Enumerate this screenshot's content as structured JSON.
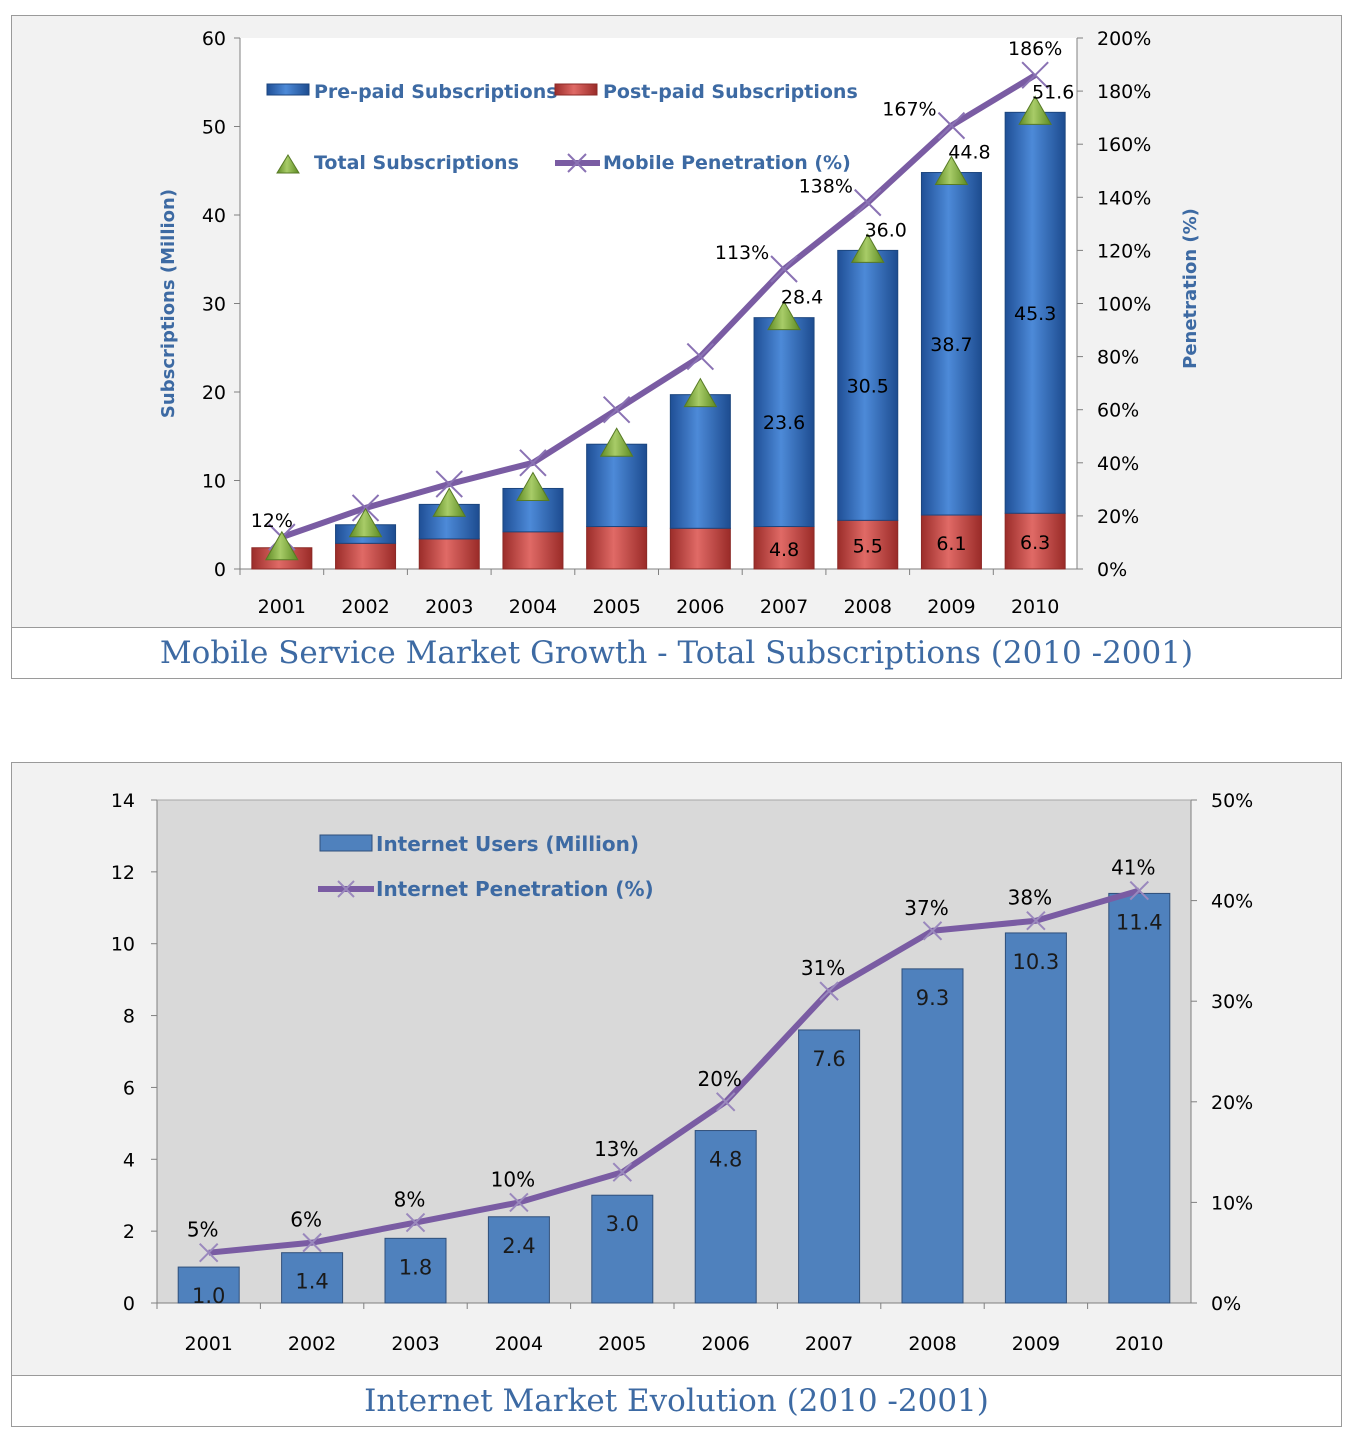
{
  "chart_data": [
    {
      "type": "bar",
      "caption": "Mobile Service Market Growth - Total Subscriptions (2010 -2001)",
      "ylabel": "Subscriptions (Million)",
      "y2label": "Penetration (%)",
      "categories": [
        "2001",
        "2002",
        "2003",
        "2004",
        "2005",
        "2006",
        "2007",
        "2008",
        "2009",
        "2010"
      ],
      "ylim": [
        0,
        60
      ],
      "y_ticks": [
        "0",
        "10",
        "20",
        "30",
        "40",
        "50",
        "60"
      ],
      "y2lim": [
        0,
        200
      ],
      "y2_ticks": [
        "0%",
        "20%",
        "40%",
        "60%",
        "80%",
        "100%",
        "120%",
        "140%",
        "160%",
        "180%",
        "200%"
      ],
      "stacked": true,
      "series": [
        {
          "name": "Post-paid Subscriptions",
          "kind": "bar",
          "color": "#c0504d",
          "values": [
            2.4,
            2.9,
            3.4,
            4.2,
            4.8,
            4.6,
            4.8,
            5.5,
            6.1,
            6.3
          ],
          "labels": [
            "",
            "",
            "",
            "",
            "",
            "",
            "4.8",
            "5.5",
            "6.1",
            "6.3"
          ]
        },
        {
          "name": "Pre-paid Subscriptions",
          "kind": "bar",
          "color": "#2e67b5",
          "values": [
            0.0,
            2.1,
            3.9,
            4.9,
            9.3,
            15.1,
            23.6,
            30.5,
            38.7,
            45.3
          ],
          "labels": [
            "",
            "",
            "",
            "",
            "",
            "",
            "23.6",
            "30.5",
            "38.7",
            "45.3"
          ]
        },
        {
          "name": "Total Subscriptions",
          "kind": "marker",
          "color": "#7ea43a",
          "values": [
            2.4,
            5.0,
            7.3,
            9.1,
            14.1,
            19.7,
            28.4,
            36.0,
            44.8,
            51.6
          ],
          "labels": [
            "",
            "",
            "",
            "",
            "",
            "",
            "28.4",
            "36.0",
            "44.8",
            "51.6"
          ]
        },
        {
          "name": "Mobile Penetration (%)",
          "kind": "line",
          "axis": "right",
          "color": "#7a5ca3",
          "values": [
            12,
            23,
            32,
            40,
            60,
            80,
            113,
            138,
            167,
            186
          ],
          "labels": [
            "12%",
            "",
            "",
            "",
            "",
            "",
            "113%",
            "138%",
            "167%",
            "186%"
          ]
        }
      ]
    },
    {
      "type": "bar",
      "caption": "Internet Market Evolution (2010 -2001)",
      "categories": [
        "2001",
        "2002",
        "2003",
        "2004",
        "2005",
        "2006",
        "2007",
        "2008",
        "2009",
        "2010"
      ],
      "ylim": [
        0,
        14
      ],
      "y_ticks": [
        "0",
        "2",
        "4",
        "6",
        "8",
        "10",
        "12",
        "14"
      ],
      "y2lim": [
        0,
        50
      ],
      "y2_ticks": [
        "0%",
        "10%",
        "20%",
        "30%",
        "40%",
        "50%"
      ],
      "series": [
        {
          "name": "Internet Users (Million)",
          "kind": "bar",
          "color": "#4f81bd",
          "values": [
            1.0,
            1.4,
            1.8,
            2.4,
            3.0,
            4.8,
            7.6,
            9.3,
            10.3,
            11.4
          ],
          "labels": [
            "1.0",
            "1.4",
            "1.8",
            "2.4",
            "3.0",
            "4.8",
            "7.6",
            "9.3",
            "10.3",
            "11.4"
          ]
        },
        {
          "name": "Internet Penetration (%)",
          "kind": "line",
          "axis": "right",
          "color": "#7a5ca3",
          "values": [
            5,
            6,
            8,
            10,
            13,
            20,
            31,
            37,
            38,
            41
          ],
          "labels": [
            "5%",
            "6%",
            "8%",
            "10%",
            "13%",
            "20%",
            "31%",
            "37%",
            "38%",
            "41%"
          ]
        }
      ]
    }
  ]
}
